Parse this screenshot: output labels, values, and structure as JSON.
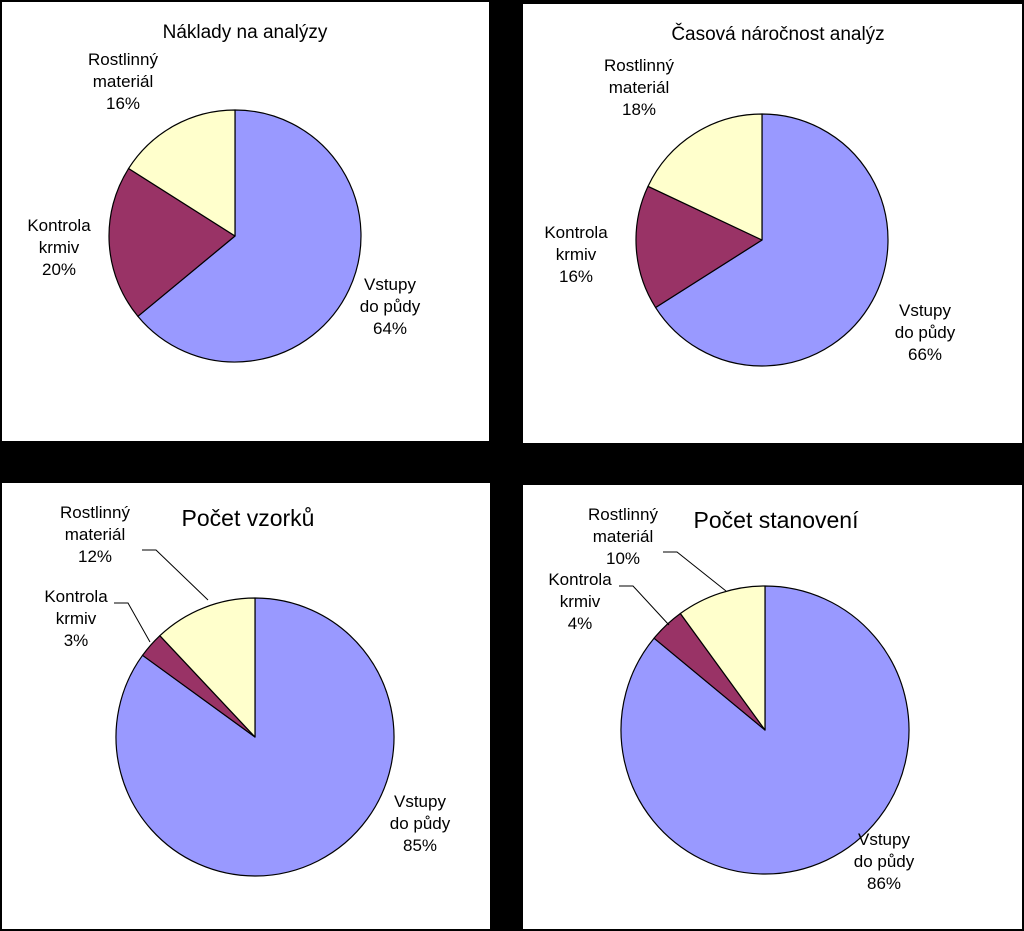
{
  "chart_data": [
    {
      "type": "pie",
      "title": "Náklady na analýzy",
      "slices": [
        {
          "label": [
            "Vstupy",
            "do půdy"
          ],
          "value": 64,
          "value_label": "64%",
          "color": "#9999ff"
        },
        {
          "label": [
            "Kontrola",
            "krmiv"
          ],
          "value": 20,
          "value_label": "20%",
          "color": "#993366"
        },
        {
          "label": [
            "Rostlinný",
            "materiál"
          ],
          "value": 16,
          "value_label": "16%",
          "color": "#ffffcc"
        }
      ]
    },
    {
      "type": "pie",
      "title": "Časová náročnost analýz",
      "slices": [
        {
          "label": [
            "Vstupy",
            "do půdy"
          ],
          "value": 66,
          "value_label": "66%",
          "color": "#9999ff"
        },
        {
          "label": [
            "Kontrola",
            "krmiv"
          ],
          "value": 16,
          "value_label": "16%",
          "color": "#993366"
        },
        {
          "label": [
            "Rostlinný",
            "materiál"
          ],
          "value": 18,
          "value_label": "18%",
          "color": "#ffffcc"
        }
      ]
    },
    {
      "type": "pie",
      "title": "Počet vzorků",
      "slices": [
        {
          "label": [
            "Vstupy",
            "do půdy"
          ],
          "value": 85,
          "value_label": "85%",
          "color": "#9999ff"
        },
        {
          "label": [
            "Kontrola",
            "krmiv"
          ],
          "value": 3,
          "value_label": "3%",
          "color": "#993366"
        },
        {
          "label": [
            "Rostlinný",
            "materiál"
          ],
          "value": 12,
          "value_label": "12%",
          "color": "#ffffcc"
        }
      ]
    },
    {
      "type": "pie",
      "title": "Počet stanovení",
      "slices": [
        {
          "label": [
            "Vstupy",
            "do půdy"
          ],
          "value": 86,
          "value_label": "86%",
          "color": "#9999ff"
        },
        {
          "label": [
            "Kontrola",
            "krmiv"
          ],
          "value": 4,
          "value_label": "4%",
          "color": "#993366"
        },
        {
          "label": [
            "Rostlinný",
            "materiál"
          ],
          "value": 10,
          "value_label": "10%",
          "color": "#ffffcc"
        }
      ]
    }
  ]
}
